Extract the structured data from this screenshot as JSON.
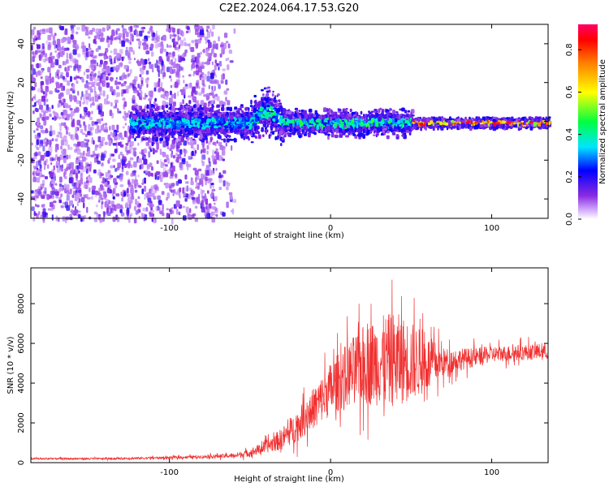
{
  "title": "C2E2.2024.064.17.53.G20",
  "chart_data": [
    {
      "type": "heatmap",
      "xlabel": "Height of straight line (km)",
      "ylabel": "Frequency (Hz)",
      "xlim": [
        -186,
        135
      ],
      "ylim": [
        -50,
        50
      ],
      "xticks": [
        -100,
        0,
        100
      ],
      "xtick_labels": [
        "-100",
        "0",
        "100"
      ],
      "yticks": [
        -40,
        -20,
        0,
        20,
        40
      ],
      "ytick_labels": [
        "-40",
        "-20",
        "0",
        "20",
        "40"
      ],
      "colorbar": {
        "label": "Normalized spectral amplitude",
        "range": [
          0,
          0.92
        ],
        "ticks": [
          0,
          0.2,
          0.4,
          0.6,
          0.8
        ],
        "tick_labels": [
          "0.0",
          "0.2",
          "0.4",
          "0.6",
          "0.8"
        ],
        "colormap": "hsv"
      },
      "regions": [
        {
          "x": [
            -186,
            -60
          ],
          "freq_spread": [
            -50,
            50
          ],
          "amplitude": [
            0.05,
            0.2
          ],
          "note": "broadband noise"
        },
        {
          "x": [
            -125,
            -50
          ],
          "freq_center": 0,
          "freq_halfwidth": 5,
          "amplitude": [
            0.2,
            0.4
          ]
        },
        {
          "x": [
            -50,
            -30
          ],
          "freq_center": 6,
          "freq_halfwidth": 7,
          "amplitude": [
            0.2,
            0.45
          ]
        },
        {
          "x": [
            -30,
            50
          ],
          "freq_center": 0,
          "freq_halfwidth": 4,
          "amplitude": [
            0.2,
            0.5
          ]
        },
        {
          "x": [
            50,
            135
          ],
          "freq_center": 0,
          "freq_halfwidth": 1.5,
          "amplitude": [
            0.5,
            0.9
          ]
        }
      ],
      "grid": false
    },
    {
      "type": "line",
      "xlabel": "Height of straight line (km)",
      "ylabel": "SNR (10 * v/v)",
      "xlim": [
        -186,
        135
      ],
      "ylim": [
        0,
        9800
      ],
      "xticks": [
        -100,
        0,
        100
      ],
      "xtick_labels": [
        "-100",
        "0",
        "100"
      ],
      "yticks": [
        0,
        2000,
        4000,
        6000,
        8000
      ],
      "ytick_labels": [
        "0",
        "2000",
        "4000",
        "6000",
        "8000"
      ],
      "color": "#f03030",
      "series": [
        {
          "x": [
            -186,
            -140,
            -100,
            -80,
            -60,
            -50,
            -40,
            -30,
            -20,
            -10,
            0,
            10,
            20,
            30,
            40,
            50,
            60,
            70,
            80,
            90,
            100,
            110,
            120,
            135
          ],
          "values": [
            200,
            200,
            250,
            300,
            350,
            500,
            800,
            1200,
            1900,
            2800,
            3700,
            4400,
            4900,
            5100,
            5200,
            5100,
            5000,
            5050,
            5200,
            5300,
            5450,
            5500,
            5550,
            5600
          ],
          "spread": [
            60,
            60,
            80,
            100,
            150,
            250,
            400,
            700,
            1000,
            1300,
            1700,
            2000,
            2500,
            2800,
            3000,
            2500,
            1800,
            900,
            700,
            600,
            500,
            500,
            500,
            500
          ]
        }
      ],
      "grid": false
    }
  ]
}
